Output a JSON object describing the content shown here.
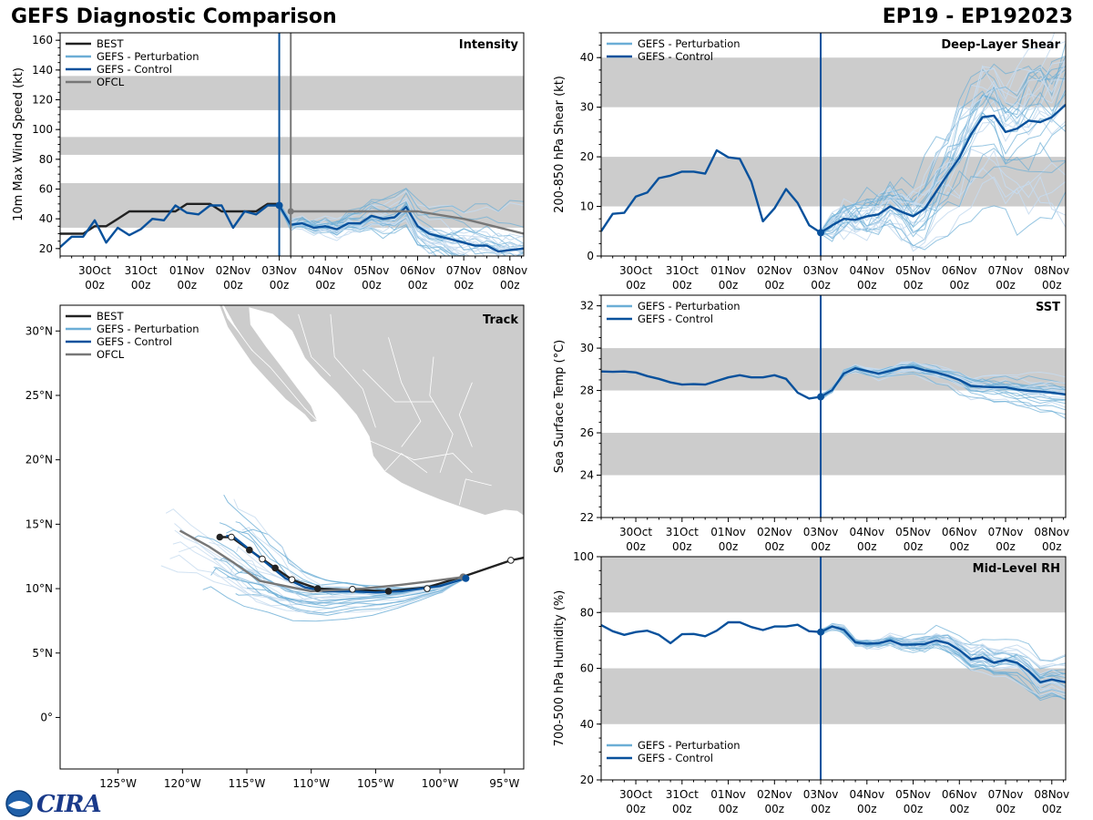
{
  "header": {
    "left_title": "GEFS Diagnostic Comparison",
    "right_title": "EP19 - EP192023"
  },
  "logo_text": "CIRA",
  "colors": {
    "best": "#222222",
    "perturbation": "#6baed6",
    "control": "#08519c",
    "ofcl": "#777777",
    "shade": "#cccccc",
    "land": "#cccccc"
  },
  "time_axis": {
    "labels": [
      [
        "30Oct",
        "00z"
      ],
      [
        "31Oct",
        "00z"
      ],
      [
        "01Nov",
        "00z"
      ],
      [
        "02Nov",
        "00z"
      ],
      [
        "03Nov",
        "00z"
      ],
      [
        "04Nov",
        "00z"
      ],
      [
        "05Nov",
        "00z"
      ],
      [
        "06Nov",
        "00z"
      ],
      [
        "07Nov",
        "00z"
      ],
      [
        "08Nov",
        "00z"
      ]
    ],
    "day_positions": [
      1,
      2,
      3,
      4,
      5,
      6,
      7,
      8,
      9,
      10
    ],
    "range": [
      0.25,
      10.3
    ],
    "init_time": 5.0,
    "ofcl_time": 5.25
  },
  "chart_data": [
    {
      "id": "intensity",
      "type": "line",
      "title": "Intensity",
      "ylabel": "10m Max Wind Speed (kt)",
      "ylim": [
        15,
        165
      ],
      "yticks": [
        20,
        40,
        60,
        80,
        100,
        120,
        140,
        160
      ],
      "shade_bands": [
        [
          34,
          64
        ],
        [
          83,
          95
        ],
        [
          113,
          136
        ]
      ],
      "legend": [
        "BEST",
        "GEFS - Perturbation",
        "GEFS - Control",
        "OFCL"
      ],
      "series": [
        {
          "name": "BEST",
          "x": [
            0.25,
            0.75,
            1.0,
            1.25,
            1.5,
            1.75,
            2.0,
            2.25,
            2.5,
            2.75,
            3.0,
            3.25,
            3.5,
            3.75,
            4.0,
            4.25,
            4.5,
            4.75,
            5.0
          ],
          "values": [
            30,
            30,
            35,
            35,
            40,
            45,
            45,
            45,
            45,
            45,
            50,
            50,
            50,
            45,
            45,
            45,
            45,
            50,
            50
          ]
        },
        {
          "name": "GEFS - Control",
          "x": [
            0.25,
            0.5,
            0.75,
            1.0,
            1.25,
            1.5,
            1.75,
            2.0,
            2.25,
            2.5,
            2.75,
            3.0,
            3.25,
            3.5,
            3.75,
            4.0,
            4.25,
            4.5,
            4.75,
            5.0,
            5.25,
            5.5,
            5.75,
            6.0,
            6.25,
            6.5,
            6.75,
            7.0,
            7.25,
            7.5,
            7.75,
            8.0,
            8.25,
            8.5,
            8.75,
            9.0,
            9.25,
            9.5,
            9.75,
            10.0,
            10.3
          ],
          "values": [
            21,
            28,
            28,
            39,
            24,
            34,
            29,
            33,
            40,
            39,
            49,
            44,
            43,
            49,
            49,
            34,
            45,
            43,
            49,
            49,
            36,
            37,
            34,
            35,
            33,
            37,
            37,
            42,
            40,
            41,
            48,
            35,
            30,
            28,
            26,
            24,
            22,
            22,
            18,
            19,
            20
          ]
        },
        {
          "name": "OFCL",
          "x": [
            5.25,
            6.0,
            7.0,
            8.0,
            9.0,
            10.3
          ],
          "values": [
            45,
            45,
            45,
            45,
            40,
            30
          ]
        }
      ]
    },
    {
      "id": "shear",
      "type": "line",
      "title": "Deep-Layer Shear",
      "ylabel": "200-850 hPa Shear (kt)",
      "ylim": [
        0,
        45
      ],
      "yticks": [
        0,
        10,
        20,
        30,
        40
      ],
      "shade_bands": [
        [
          10,
          20
        ],
        [
          30,
          40
        ]
      ],
      "legend": [
        "GEFS - Perturbation",
        "GEFS - Control"
      ],
      "series": [
        {
          "name": "GEFS - Control",
          "x": [
            0.25,
            0.5,
            0.75,
            1.0,
            1.25,
            1.5,
            1.75,
            2.0,
            2.25,
            2.5,
            2.75,
            3.0,
            3.25,
            3.5,
            3.75,
            4.0,
            4.25,
            4.5,
            4.75,
            5.0,
            5.25,
            5.5,
            5.75,
            6.0,
            6.25,
            6.5,
            6.75,
            7.0,
            7.25,
            7.5,
            7.75,
            8.0,
            8.25,
            8.5,
            8.75,
            9.0,
            9.25,
            9.5,
            9.75,
            10.0,
            10.3
          ],
          "values": [
            5,
            8.5,
            8.7,
            12,
            12.8,
            15.7,
            16.2,
            17,
            17,
            16.6,
            21.3,
            19.9,
            19.6,
            15,
            7,
            9.6,
            13.5,
            10.7,
            6.2,
            4.7,
            6.2,
            7.5,
            7.3,
            8,
            8.4,
            10,
            8.9,
            8,
            9.5,
            13,
            16.5,
            19.8,
            24.5,
            28,
            28.3,
            25,
            25.7,
            27.3,
            27,
            28,
            30.5
          ]
        }
      ]
    },
    {
      "id": "sst",
      "type": "line",
      "title": "SST",
      "ylabel": "Sea Surface Temp (°C)",
      "ylim": [
        22,
        32.5
      ],
      "yticks": [
        22,
        24,
        26,
        28,
        30,
        32
      ],
      "shade_bands": [
        [
          24,
          26
        ],
        [
          28,
          30
        ]
      ],
      "legend": [
        "GEFS - Perturbation",
        "GEFS - Control"
      ],
      "series": [
        {
          "name": "GEFS - Control",
          "x": [
            0.25,
            0.5,
            0.75,
            1.0,
            1.25,
            1.5,
            1.75,
            2.0,
            2.25,
            2.5,
            2.75,
            3.0,
            3.25,
            3.5,
            3.75,
            4.0,
            4.25,
            4.5,
            4.75,
            5.0,
            5.25,
            5.5,
            5.75,
            6.0,
            6.25,
            6.5,
            6.75,
            7.0,
            7.25,
            7.5,
            7.75,
            8.0,
            8.25,
            8.5,
            8.75,
            9.0,
            9.25,
            9.5,
            9.75,
            10.0,
            10.3
          ],
          "values": [
            28.9,
            28.88,
            28.9,
            28.85,
            28.68,
            28.55,
            28.38,
            28.28,
            28.3,
            28.28,
            28.45,
            28.62,
            28.72,
            28.62,
            28.62,
            28.72,
            28.55,
            27.9,
            27.62,
            27.7,
            28.02,
            28.8,
            29.05,
            28.92,
            28.8,
            28.92,
            29.08,
            29.1,
            28.95,
            28.85,
            28.7,
            28.5,
            28.22,
            28.18,
            28.16,
            28.15,
            28.05,
            27.98,
            27.95,
            27.9,
            27.82
          ]
        }
      ]
    },
    {
      "id": "rh",
      "type": "line",
      "title": "Mid-Level RH",
      "ylabel": "700-500 hPa Humidity (%)",
      "ylim": [
        20,
        100
      ],
      "yticks": [
        20,
        40,
        60,
        80,
        100
      ],
      "shade_bands": [
        [
          40,
          60
        ],
        [
          80,
          100
        ]
      ],
      "legend": [
        "GEFS - Perturbation",
        "GEFS - Control"
      ],
      "series": [
        {
          "name": "GEFS - Control",
          "x": [
            0.25,
            0.5,
            0.75,
            1.0,
            1.25,
            1.5,
            1.75,
            2.0,
            2.25,
            2.5,
            2.75,
            3.0,
            3.25,
            3.5,
            3.75,
            4.0,
            4.25,
            4.5,
            4.75,
            5.0,
            5.25,
            5.5,
            5.75,
            6.0,
            6.25,
            6.5,
            6.75,
            7.0,
            7.25,
            7.5,
            7.75,
            8.0,
            8.25,
            8.5,
            8.75,
            9.0,
            9.25,
            9.5,
            9.75,
            10.0,
            10.3
          ],
          "values": [
            75.5,
            73.3,
            72,
            73,
            73.5,
            72,
            69,
            72.2,
            72.3,
            71.5,
            73.5,
            76.5,
            76.5,
            74.8,
            73.7,
            75,
            75,
            75.6,
            73.3,
            73,
            75,
            73.8,
            69.3,
            68.8,
            69,
            70,
            68.5,
            68.5,
            68.7,
            70,
            69,
            66.5,
            63.2,
            64,
            62,
            63,
            62,
            59,
            55,
            56,
            55
          ]
        }
      ]
    },
    {
      "id": "track",
      "type": "line",
      "title": "Track",
      "xlim": [
        -129.5,
        -93.5
      ],
      "ylim": [
        -4,
        32
      ],
      "xticks": [
        -125,
        -120,
        -115,
        -110,
        -105,
        -100,
        -95
      ],
      "xtick_labels": [
        "125°W",
        "120°W",
        "115°W",
        "110°W",
        "105°W",
        "100°W",
        "95°W"
      ],
      "yticks": [
        0,
        5,
        10,
        15,
        20,
        25,
        30
      ],
      "ytick_labels": [
        "0°",
        "5°N",
        "10°N",
        "15°N",
        "20°N",
        "25°N",
        "30°N"
      ],
      "legend": [
        "BEST",
        "GEFS - Perturbation",
        "GEFS - Control",
        "OFCL"
      ],
      "series": [
        {
          "name": "BEST",
          "lon": [
            -93.5,
            -94.5,
            -98,
            -101,
            -104,
            -106.8,
            -109.5,
            -111.5,
            -112.8,
            -113.8,
            -114.8,
            -116.2,
            -117.1
          ],
          "lat": [
            12.4,
            12.2,
            11,
            10.1,
            9.8,
            9.9,
            10,
            10.7,
            11.6,
            12.3,
            13,
            14,
            14
          ]
        },
        {
          "name": "GEFS - Control",
          "lon": [
            -98,
            -99,
            -100,
            -101.5,
            -103,
            -105,
            -107,
            -109,
            -110.5,
            -112,
            -113,
            -114,
            -115,
            -116,
            -116.6
          ],
          "lat": [
            10.8,
            10.5,
            10.2,
            10,
            9.8,
            9.7,
            9.8,
            9.8,
            10.1,
            10.8,
            11.6,
            12.4,
            13.2,
            14,
            14.1
          ]
        },
        {
          "name": "OFCL",
          "lon": [
            -98.2,
            -100.5,
            -103,
            -106,
            -110,
            -114,
            -116,
            -118,
            -120.2
          ],
          "lat": [
            10.9,
            10.6,
            10.3,
            10,
            9.8,
            10.6,
            12,
            13.3,
            14.5
          ]
        }
      ],
      "best_markers": [
        {
          "lon": -94.5,
          "lat": 12.2,
          "filled": false
        },
        {
          "lon": -101,
          "lat": 10.0,
          "filled": false
        },
        {
          "lon": -104,
          "lat": 9.8,
          "filled": true
        },
        {
          "lon": -106.8,
          "lat": 9.95,
          "filled": false
        },
        {
          "lon": -109.5,
          "lat": 10.0,
          "filled": true
        },
        {
          "lon": -111.5,
          "lat": 10.7,
          "filled": false
        },
        {
          "lon": -112.8,
          "lat": 11.6,
          "filled": true
        },
        {
          "lon": -113.8,
          "lat": 12.3,
          "filled": false
        },
        {
          "lon": -114.8,
          "lat": 13.0,
          "filled": true
        },
        {
          "lon": -116.2,
          "lat": 14.0,
          "filled": false
        },
        {
          "lon": -117.1,
          "lat": 14.0,
          "filled": true
        }
      ]
    }
  ]
}
